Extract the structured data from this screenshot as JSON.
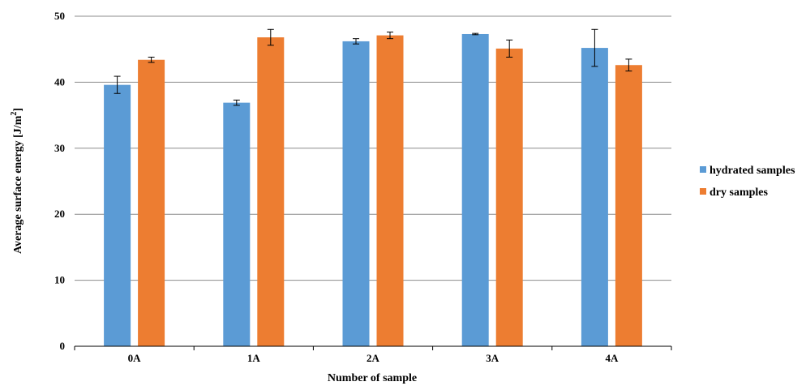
{
  "chart_data": {
    "type": "bar",
    "title": "",
    "xlabel": "Number of sample",
    "ylabel": "Average surface energy [J/m",
    "ylabel_sup": "2",
    "ylabel_end": "]",
    "ylim": [
      0,
      50
    ],
    "yticks": [
      0,
      10,
      20,
      30,
      40,
      50
    ],
    "grid": true,
    "legend_position": "right",
    "categories": [
      "0A",
      "1A",
      "2A",
      "3A",
      "4A"
    ],
    "series": [
      {
        "name": "hydrated samples",
        "color": "#5B9BD5",
        "values": [
          39.6,
          36.9,
          46.2,
          47.3,
          45.2
        ],
        "errors": [
          1.3,
          0.4,
          0.4,
          0.1,
          2.8
        ]
      },
      {
        "name": "dry samples",
        "color": "#ED7D31",
        "values": [
          43.4,
          46.8,
          47.1,
          45.1,
          42.6
        ],
        "errors": [
          0.4,
          1.2,
          0.5,
          1.3,
          0.9
        ]
      }
    ]
  }
}
